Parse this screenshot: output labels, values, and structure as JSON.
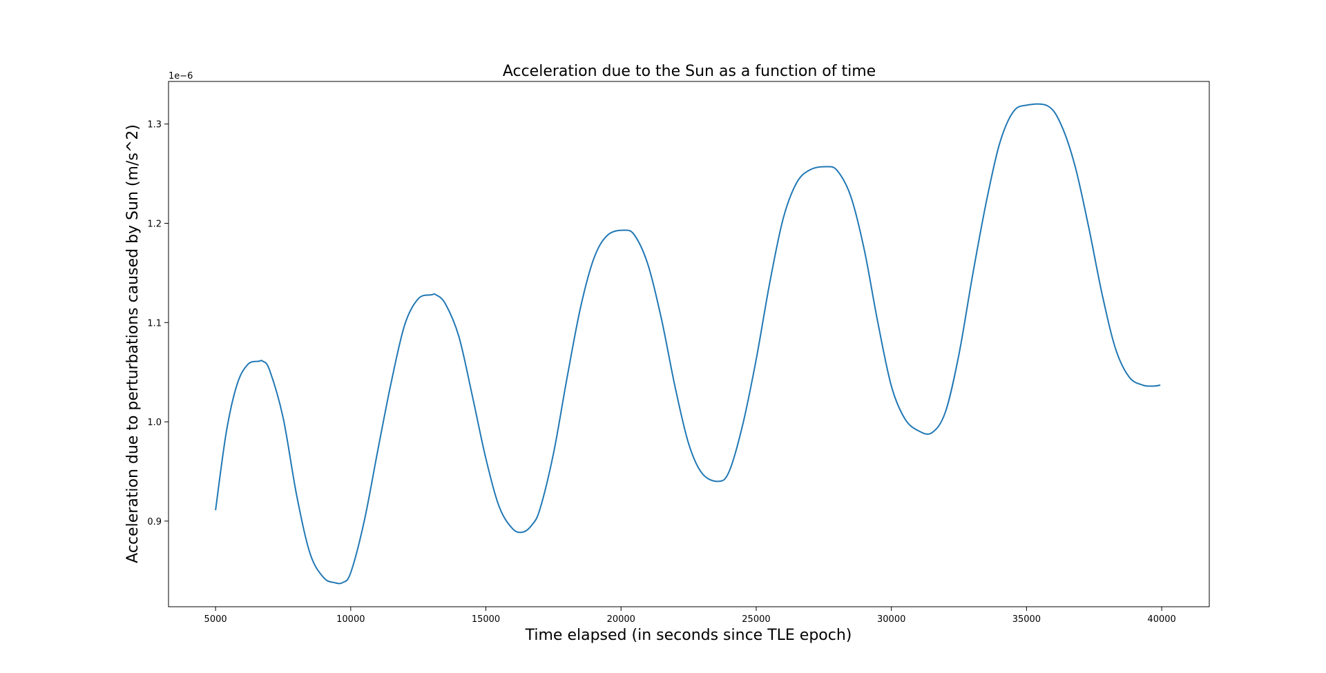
{
  "chart_data": {
    "type": "line",
    "title": "Acceleration due to the Sun as a function of time",
    "xlabel": "Time elapsed (in seconds since TLE epoch)",
    "ylabel": "Acceleration due to perturbations caused by Sun (m/s^2)",
    "y_offset_label": "1e−6",
    "xlim": [
      3260,
      41760
    ],
    "ylim": [
      0.8137,
      1.3429
    ],
    "x_ticks": [
      5000,
      10000,
      15000,
      20000,
      25000,
      30000,
      35000,
      40000
    ],
    "x_tick_labels": [
      "5000",
      "10000",
      "15000",
      "20000",
      "25000",
      "30000",
      "35000",
      "40000"
    ],
    "y_ticks": [
      0.9,
      1.0,
      1.1,
      1.2,
      1.3
    ],
    "y_tick_labels": [
      "0.9",
      "1.0",
      "1.1",
      "1.2",
      "1.3"
    ],
    "grid": false,
    "series": [
      {
        "color": "#1f77b4",
        "x": [
          5000,
          5400,
          5800,
          6200,
          6600,
          6750,
          7000,
          7500,
          8000,
          8500,
          9000,
          9400,
          9700,
          10000,
          10500,
          11000,
          11500,
          12000,
          12500,
          13000,
          13150,
          13500,
          14000,
          14500,
          15000,
          15500,
          16000,
          16380,
          16700,
          17000,
          17500,
          18000,
          18500,
          19000,
          19500,
          20100,
          20500,
          21000,
          21500,
          22000,
          22500,
          23000,
          23600,
          24000,
          24500,
          25000,
          25500,
          26000,
          26500,
          27000,
          27600,
          28000,
          28500,
          29000,
          29500,
          30000,
          30500,
          31000,
          31500,
          32000,
          32500,
          33000,
          33500,
          34000,
          34500,
          35000,
          35800,
          36300,
          36800,
          37300,
          37800,
          38300,
          38800,
          39300,
          39700,
          39950
        ],
        "y": [
          0.911,
          0.99,
          1.038,
          1.058,
          1.061,
          1.061,
          1.052,
          1.004,
          0.926,
          0.867,
          0.843,
          0.838,
          0.838,
          0.848,
          0.9,
          0.971,
          1.04,
          1.098,
          1.124,
          1.128,
          1.128,
          1.119,
          1.086,
          1.026,
          0.963,
          0.914,
          0.892,
          0.889,
          0.896,
          0.912,
          0.968,
          1.044,
          1.115,
          1.165,
          1.188,
          1.193,
          1.188,
          1.158,
          1.103,
          1.035,
          0.978,
          0.948,
          0.94,
          0.95,
          0.997,
          1.063,
          1.14,
          1.205,
          1.241,
          1.254,
          1.257,
          1.253,
          1.227,
          1.173,
          1.1,
          1.036,
          1.003,
          0.991,
          0.989,
          1.01,
          1.068,
          1.147,
          1.22,
          1.28,
          1.312,
          1.319,
          1.318,
          1.298,
          1.257,
          1.196,
          1.128,
          1.073,
          1.045,
          1.037,
          1.036,
          1.037
        ]
      }
    ]
  }
}
